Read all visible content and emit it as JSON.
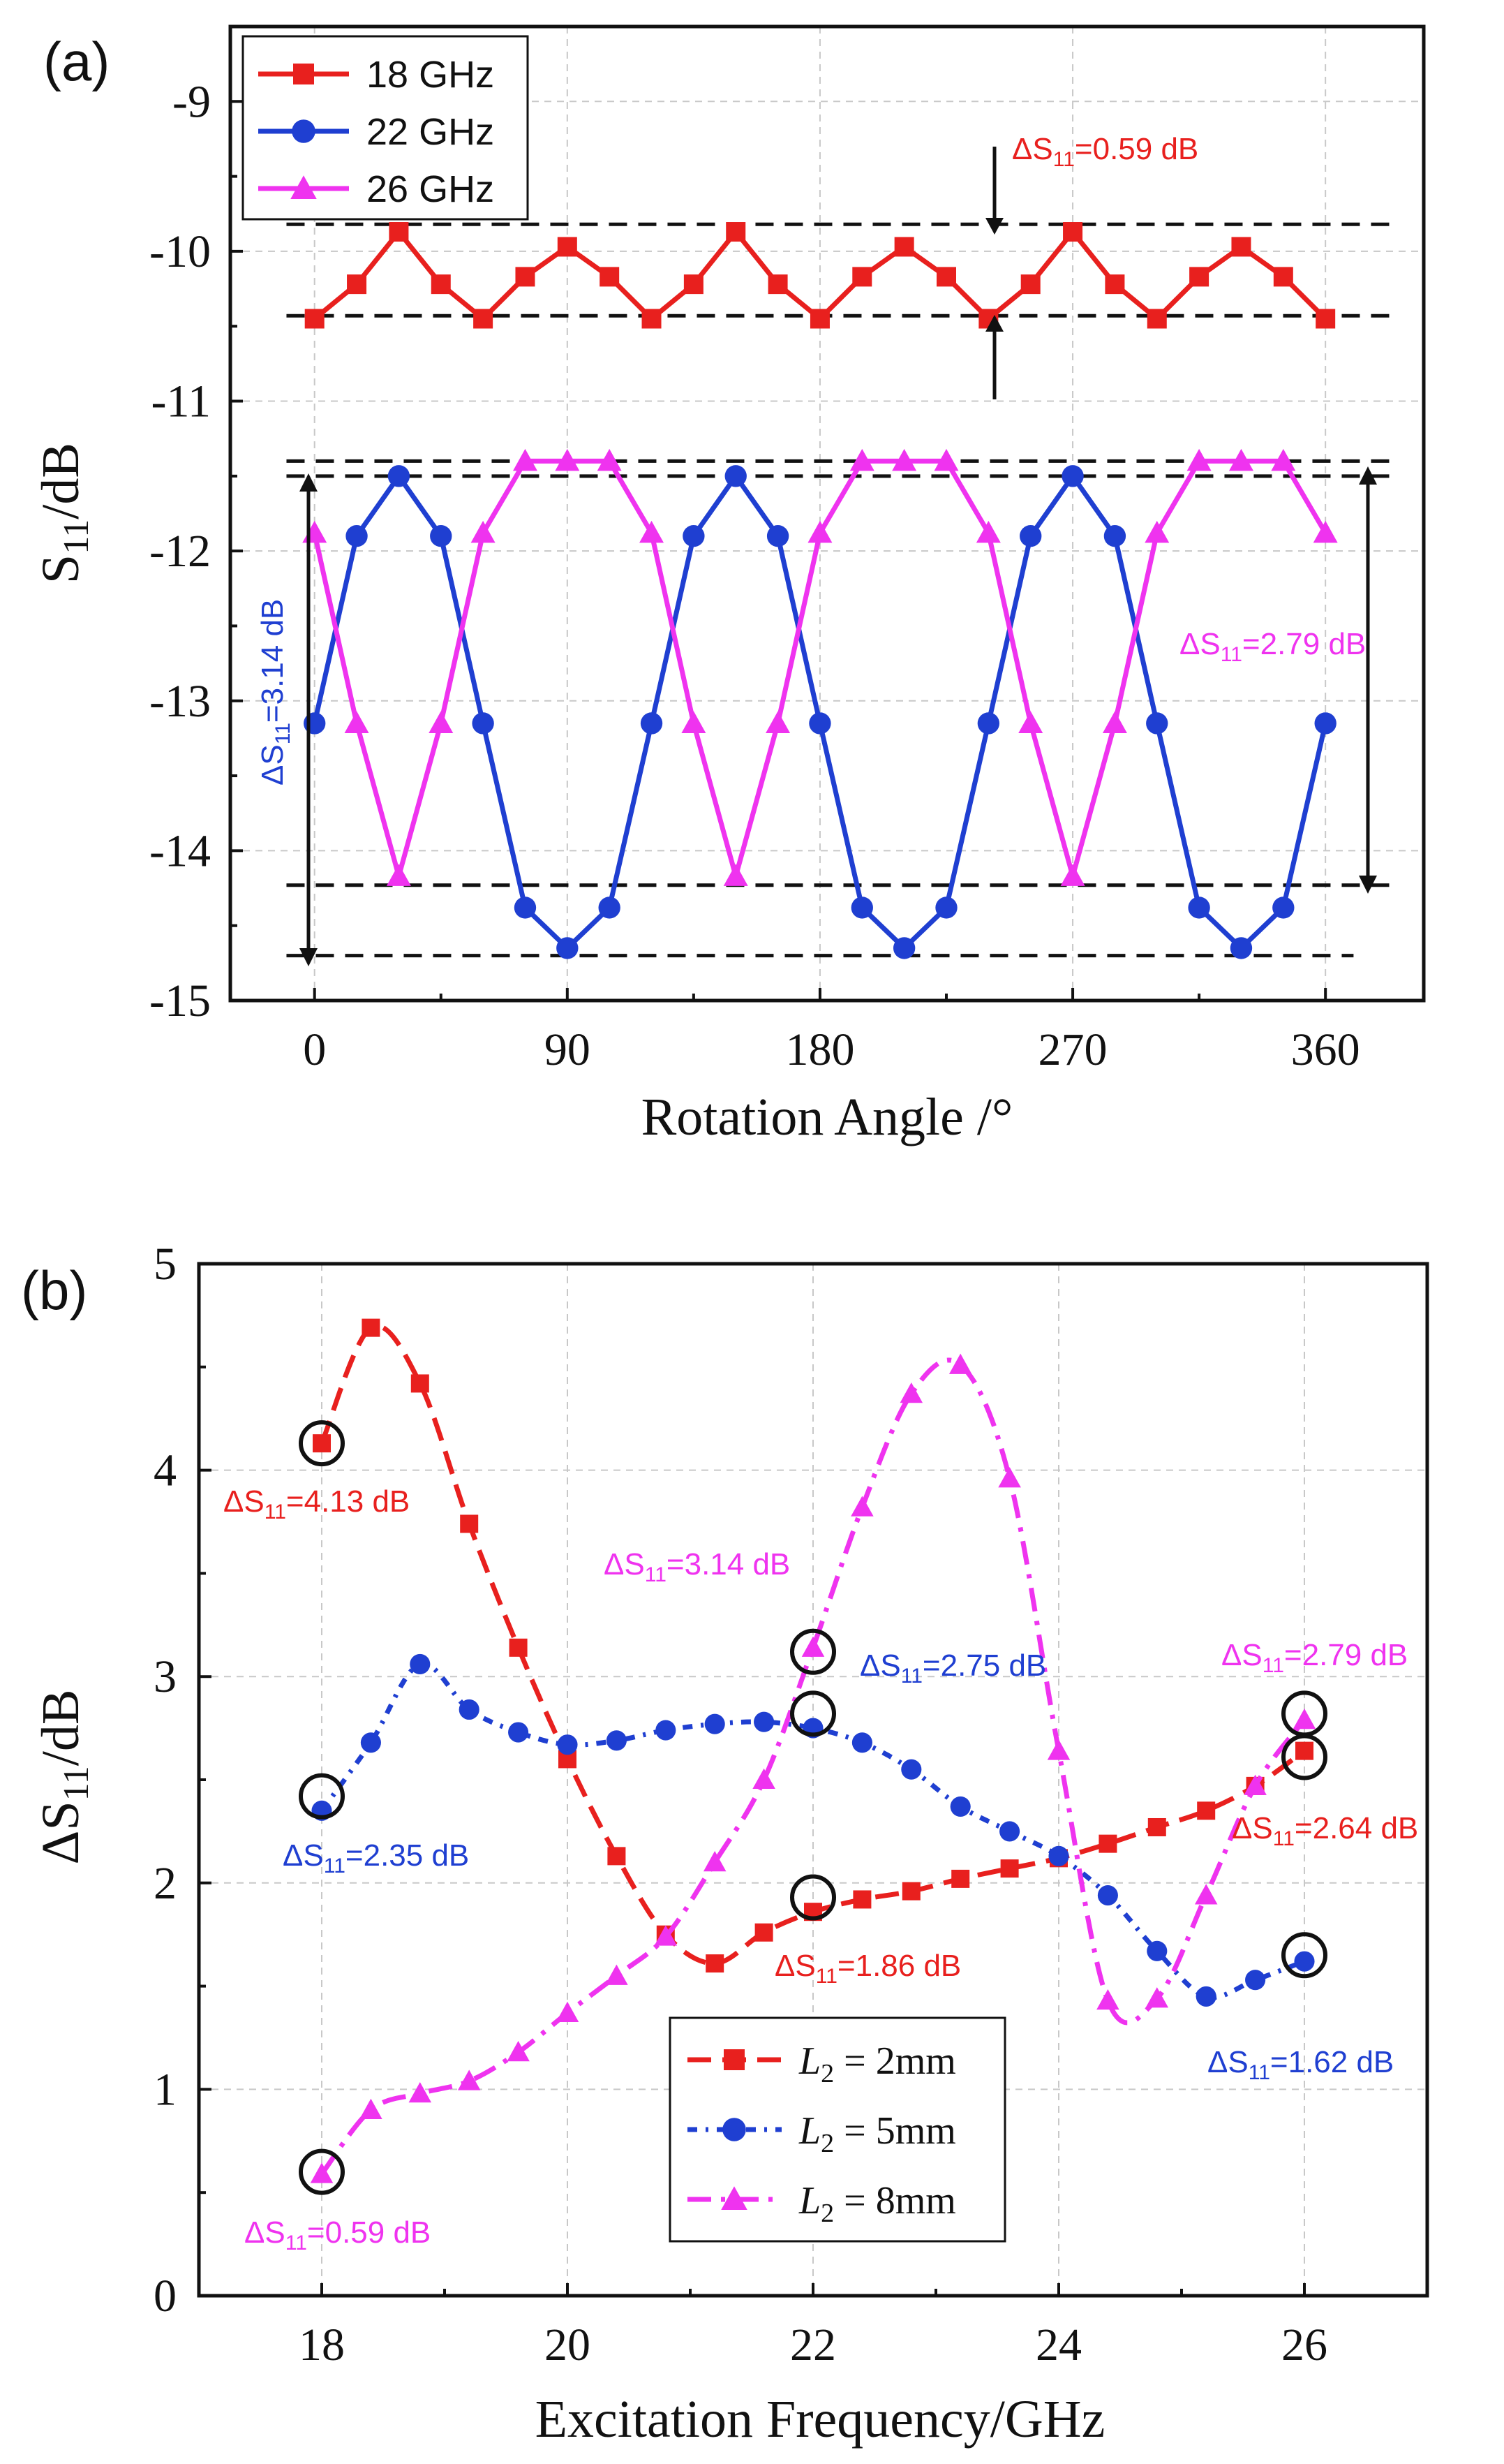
{
  "chart_data": [
    {
      "panel_label": "(a)",
      "type": "line",
      "xlabel": "Rotation Angle /°",
      "ylabel": "S11/dB",
      "xlim": [
        -30,
        395
      ],
      "ylim": [
        -15,
        -8.5
      ],
      "x_ticks": [
        0,
        90,
        180,
        270,
        360
      ],
      "y_ticks": [
        -15,
        -14,
        -13,
        -12,
        -11,
        -10,
        -9
      ],
      "x": [
        0,
        15,
        30,
        45,
        60,
        75,
        90,
        105,
        120,
        135,
        150,
        165,
        180,
        195,
        210,
        225,
        240,
        255,
        270,
        285,
        300,
        315,
        330,
        345,
        360
      ],
      "series": [
        {
          "name": "18 GHz",
          "color": "#e8201e",
          "marker": "square",
          "values": [
            -10.45,
            -10.22,
            -9.87,
            -10.22,
            -10.45,
            -10.17,
            -9.97,
            -10.17,
            -10.45,
            -10.22,
            -9.87,
            -10.22,
            -10.45,
            -10.17,
            -9.97,
            -10.17,
            -10.45,
            -10.22,
            -9.87,
            -10.22,
            -10.45,
            -10.17,
            -9.97,
            -10.17,
            -10.45
          ]
        },
        {
          "name": "22 GHz",
          "color": "#1f3fd1",
          "marker": "circle",
          "values": [
            -13.15,
            -11.9,
            -11.5,
            -11.9,
            -13.15,
            -14.38,
            -14.65,
            -14.38,
            -13.15,
            -11.9,
            -11.5,
            -11.9,
            -13.15,
            -14.38,
            -14.65,
            -14.38,
            -13.15,
            -11.9,
            -11.5,
            -11.9,
            -13.15,
            -14.38,
            -14.65,
            -14.38,
            -13.15
          ]
        },
        {
          "name": "26 GHz",
          "color": "#ef33ef",
          "marker": "triangle",
          "values": [
            -11.88,
            -13.15,
            -14.17,
            -13.15,
            -11.88,
            -11.4,
            -11.4,
            -11.4,
            -11.88,
            -13.15,
            -14.17,
            -13.15,
            -11.88,
            -11.4,
            -11.4,
            -11.4,
            -11.88,
            -13.15,
            -14.17,
            -13.15,
            -11.88,
            -11.4,
            -11.4,
            -11.4,
            -11.88
          ]
        }
      ],
      "reference_lines": [
        {
          "y": -9.82,
          "x_start": -10,
          "x_end": 385
        },
        {
          "y": -10.43,
          "x_start": -10,
          "x_end": 385
        },
        {
          "y": -11.4,
          "x_start": -10,
          "x_end": 385
        },
        {
          "y": -11.5,
          "x_start": -10,
          "x_end": 385
        },
        {
          "y": -14.23,
          "x_start": -10,
          "x_end": 385
        },
        {
          "y": -14.7,
          "x_start": -10,
          "x_end": 370
        }
      ],
      "annotations": [
        {
          "prefix": "ΔS",
          "sub": "11",
          "suffix": "=0.59 dB",
          "color": "#e8201e"
        },
        {
          "prefix": "ΔS",
          "sub": "11",
          "suffix": "=2.79 dB",
          "color": "#ef33ef"
        },
        {
          "prefix": "ΔS",
          "sub": "11",
          "suffix": "=3.14 dB",
          "color": "#1f3fd1"
        }
      ]
    },
    {
      "panel_label": "(b)",
      "type": "line",
      "xlabel": "Excitation Frequency/GHz",
      "ylabel": "ΔS11/dB",
      "xlim": [
        17,
        27
      ],
      "ylim": [
        0,
        5
      ],
      "x_ticks": [
        18,
        20,
        22,
        24,
        26
      ],
      "y_ticks": [
        0,
        1,
        2,
        3,
        4,
        5
      ],
      "series": [
        {
          "name": "L2 = 2mm",
          "legend_var": "L",
          "legend_sub": "2",
          "legend_rest": " = 2mm",
          "color": "#e8201e",
          "marker": "square",
          "x": [
            18,
            18.4,
            18.8,
            19.2,
            19.6,
            20,
            20.4,
            20.8,
            21.2,
            21.6,
            22,
            22.4,
            22.8,
            23.2,
            23.6,
            24,
            24.4,
            24.8,
            25.2,
            25.6,
            26
          ],
          "values": [
            4.13,
            4.69,
            4.42,
            3.74,
            3.14,
            2.6,
            2.13,
            1.75,
            1.61,
            1.76,
            1.86,
            1.92,
            1.96,
            2.02,
            2.07,
            2.12,
            2.19,
            2.27,
            2.35,
            2.47,
            2.64
          ]
        },
        {
          "name": "L2 = 5mm",
          "legend_var": "L",
          "legend_sub": "2",
          "legend_rest": " = 5mm",
          "color": "#1f3fd1",
          "marker": "circle",
          "x": [
            18,
            18.4,
            18.8,
            19.2,
            19.6,
            20,
            20.4,
            20.8,
            21.2,
            21.6,
            22,
            22.4,
            22.8,
            23.2,
            23.6,
            24,
            24.4,
            24.8,
            25.2,
            25.6,
            26
          ],
          "values": [
            2.35,
            2.68,
            3.06,
            2.84,
            2.73,
            2.67,
            2.69,
            2.74,
            2.77,
            2.78,
            2.75,
            2.68,
            2.55,
            2.37,
            2.25,
            2.13,
            1.94,
            1.67,
            1.45,
            1.53,
            1.62
          ]
        },
        {
          "name": "L2 = 8mm",
          "legend_var": "L",
          "legend_sub": "2",
          "legend_rest": " = 8mm",
          "color": "#ef33ef",
          "marker": "triangle",
          "x": [
            18,
            18.4,
            18.8,
            19.2,
            19.6,
            20,
            20.4,
            20.8,
            21.2,
            21.6,
            22,
            22.4,
            22.8,
            23.2,
            23.6,
            24,
            24.4,
            24.8,
            25.2,
            25.6,
            26
          ],
          "values": [
            0.59,
            0.9,
            0.98,
            1.04,
            1.18,
            1.37,
            1.55,
            1.74,
            2.1,
            2.5,
            3.14,
            3.82,
            4.37,
            4.51,
            3.96,
            2.64,
            1.43,
            1.44,
            1.94,
            2.47,
            2.79
          ]
        }
      ],
      "circled_points": [
        {
          "x": 18,
          "y": 4.13
        },
        {
          "x": 18,
          "y": 2.42
        },
        {
          "x": 18,
          "y": 0.6
        },
        {
          "x": 22,
          "y": 3.12
        },
        {
          "x": 22,
          "y": 2.82
        },
        {
          "x": 22,
          "y": 1.93
        },
        {
          "x": 26,
          "y": 2.82
        },
        {
          "x": 26,
          "y": 2.61
        },
        {
          "x": 26,
          "y": 1.65
        }
      ],
      "annotations": [
        {
          "prefix": "ΔS",
          "sub": "11",
          "suffix": "=4.13 dB",
          "color": "#e8201e"
        },
        {
          "prefix": "ΔS",
          "sub": "11",
          "suffix": "=3.14 dB",
          "color": "#ef33ef"
        },
        {
          "prefix": "ΔS",
          "sub": "11",
          "suffix": "=2.75 dB",
          "color": "#1f3fd1"
        },
        {
          "prefix": "ΔS",
          "sub": "11",
          "suffix": "=2.79 dB",
          "color": "#ef33ef"
        },
        {
          "prefix": "ΔS",
          "sub": "11",
          "suffix": "=2.35 dB",
          "color": "#1f3fd1"
        },
        {
          "prefix": "ΔS",
          "sub": "11",
          "suffix": "=2.64 dB",
          "color": "#e8201e"
        },
        {
          "prefix": "ΔS",
          "sub": "11",
          "suffix": "=1.86 dB",
          "color": "#e8201e"
        },
        {
          "prefix": "ΔS",
          "sub": "11",
          "suffix": "=1.62 dB",
          "color": "#1f3fd1"
        },
        {
          "prefix": "ΔS",
          "sub": "11",
          "suffix": "=0.59 dB",
          "color": "#ef33ef"
        }
      ]
    }
  ]
}
